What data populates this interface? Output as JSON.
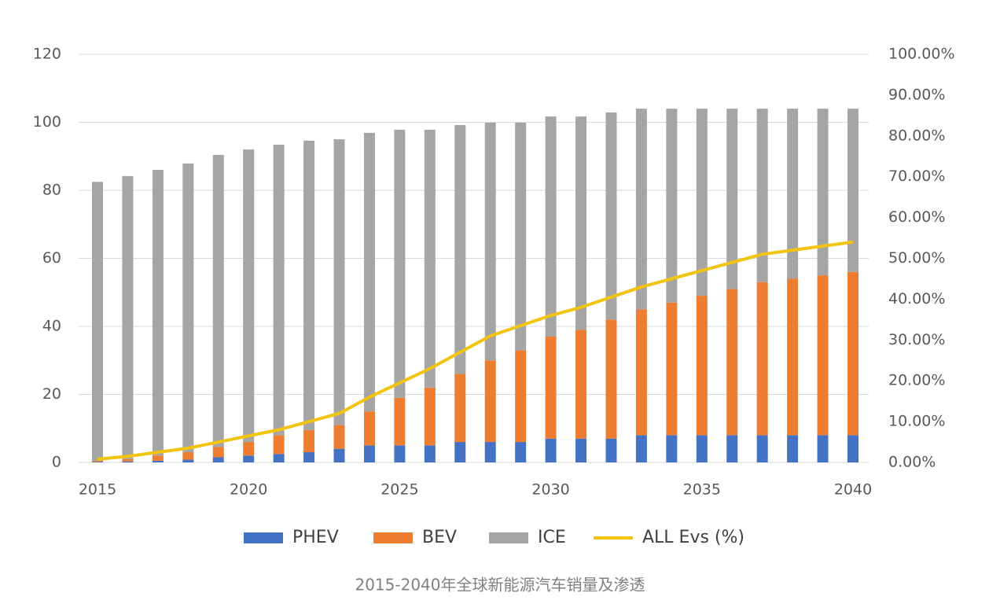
{
  "chart_data": {
    "type": "bar-line",
    "title": "2015-2040年全球新能源汽车销量及渗透",
    "x": [
      2015,
      2016,
      2017,
      2018,
      2019,
      2020,
      2021,
      2022,
      2023,
      2024,
      2025,
      2026,
      2027,
      2028,
      2029,
      2030,
      2031,
      2032,
      2033,
      2034,
      2035,
      2036,
      2037,
      2038,
      2039,
      2040
    ],
    "xlim": [
      2015,
      2040
    ],
    "xticks": [
      2015,
      2020,
      2025,
      2030,
      2035,
      2040
    ],
    "ylim": [
      0,
      120
    ],
    "yticks": [
      0,
      20,
      40,
      60,
      80,
      100,
      120
    ],
    "y2lim": [
      0,
      100
    ],
    "y2ticks": [
      {
        "value": 0,
        "label": "0.00%"
      },
      {
        "value": 10,
        "label": "10.00%"
      },
      {
        "value": 20,
        "label": "20.00%"
      },
      {
        "value": 30,
        "label": "30.00%"
      },
      {
        "value": 40,
        "label": "40.00%"
      },
      {
        "value": 50,
        "label": "50.00%"
      },
      {
        "value": 60,
        "label": "60.00%"
      },
      {
        "value": 70,
        "label": "70.00%"
      },
      {
        "value": 80,
        "label": "80.00%"
      },
      {
        "value": 90,
        "label": "90.00%"
      },
      {
        "value": 100,
        "label": "100.00%"
      }
    ],
    "grid": true,
    "legend": "bottom",
    "series": [
      {
        "name": "PHEV",
        "color": "#4472c4",
        "kind": "bar",
        "values": [
          0.2,
          0.3,
          0.5,
          0.8,
          1.5,
          2,
          2.5,
          3,
          4,
          5,
          5,
          5,
          6,
          6,
          6,
          7,
          7,
          7,
          8,
          8,
          8,
          8,
          8,
          8,
          8,
          8
        ]
      },
      {
        "name": "BEV",
        "color": "#ed7d31",
        "kind": "bar",
        "values": [
          0.3,
          0.7,
          1.5,
          2.2,
          3,
          4,
          5.5,
          6.5,
          7,
          10,
          14,
          17,
          20,
          24,
          27,
          30,
          32,
          35,
          37,
          39,
          41,
          43,
          45,
          46,
          47,
          48
        ]
      },
      {
        "name": "ICE",
        "color": "#a5a5a5",
        "kind": "bar",
        "values": [
          82,
          83.2,
          84,
          84.9,
          85.9,
          86,
          85.4,
          85.1,
          84,
          81.9,
          78.8,
          75.8,
          73.2,
          69.9,
          66.9,
          64.7,
          62.7,
          60.9,
          59,
          57,
          55,
          53,
          51,
          50,
          49,
          48
        ]
      },
      {
        "name": "ALL Evs (%)",
        "color": "#f2c40f",
        "kind": "line",
        "axis": "y2",
        "values": [
          0.8,
          1.5,
          2.5,
          3.5,
          5,
          6.5,
          8,
          10,
          12,
          16,
          19.5,
          23,
          27,
          31,
          33.5,
          36,
          38,
          40.5,
          43,
          45,
          47,
          49,
          51,
          52,
          53,
          54
        ]
      }
    ]
  }
}
